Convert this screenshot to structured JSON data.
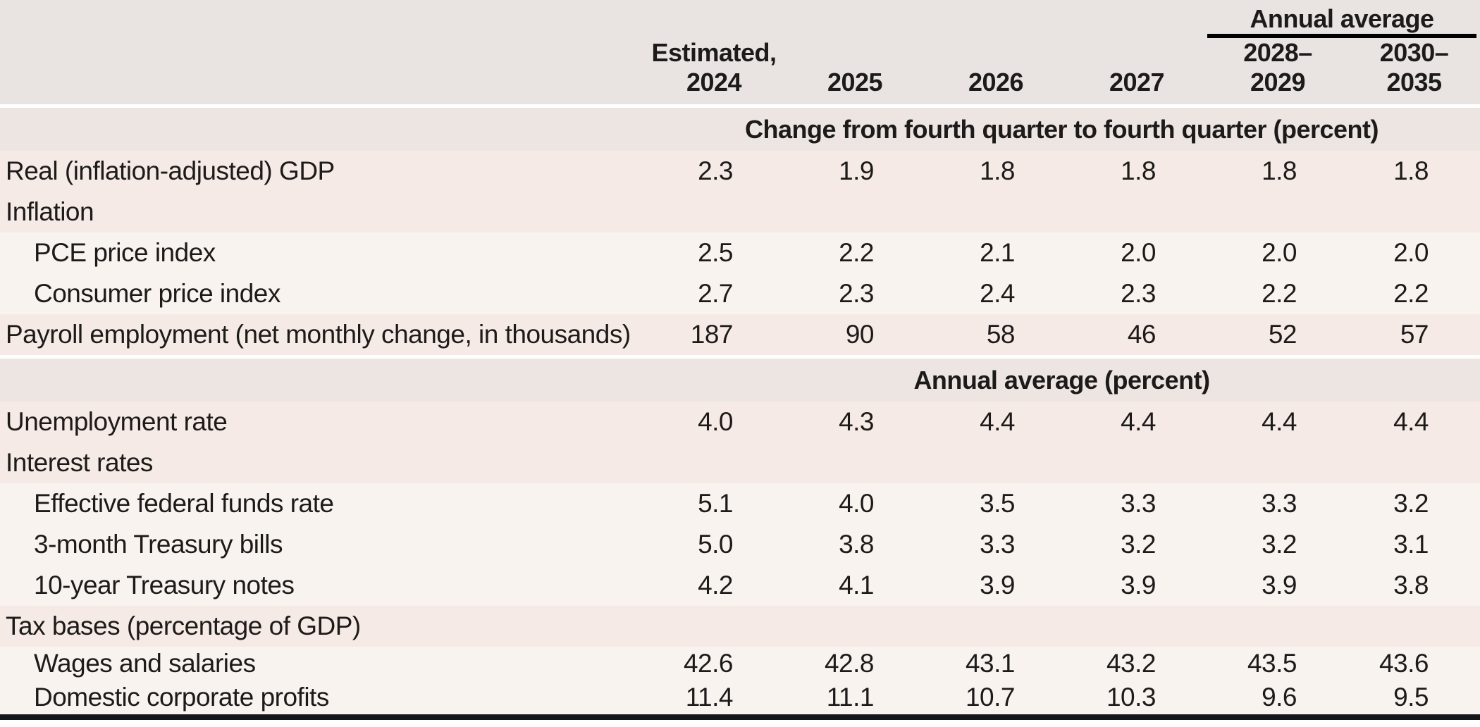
{
  "table": {
    "spanner_label": "Annual average",
    "columns": [
      {
        "line1": "Estimated,",
        "line2": "2024"
      },
      {
        "line1": "",
        "line2": "2025"
      },
      {
        "line1": "",
        "line2": "2026"
      },
      {
        "line1": "",
        "line2": "2027"
      },
      {
        "line1": "2028–",
        "line2": "2029"
      },
      {
        "line1": "2030–",
        "line2": "2035"
      }
    ],
    "sections": [
      {
        "header": "Change from fourth quarter to fourth quarter (percent)",
        "rows": [
          {
            "label": "Real (inflation-adjusted) GDP",
            "values": [
              "2.3",
              "1.9",
              "1.8",
              "1.8",
              "1.8",
              "1.8"
            ]
          },
          {
            "label": "Inflation",
            "values": [
              "",
              "",
              "",
              "",
              "",
              ""
            ]
          },
          {
            "label": "PCE price index",
            "values": [
              "2.5",
              "2.2",
              "2.1",
              "2.0",
              "2.0",
              "2.0"
            ]
          },
          {
            "label": "Consumer price index",
            "values": [
              "2.7",
              "2.3",
              "2.4",
              "2.3",
              "2.2",
              "2.2"
            ]
          },
          {
            "label": "Payroll employment (net monthly change, in thousands)",
            "values": [
              "187",
              "90",
              "58",
              "46",
              "52",
              "57"
            ]
          }
        ]
      },
      {
        "header": "Annual average (percent)",
        "rows": [
          {
            "label": "Unemployment rate",
            "values": [
              "4.0",
              "4.3",
              "4.4",
              "4.4",
              "4.4",
              "4.4"
            ]
          },
          {
            "label": "Interest rates",
            "values": [
              "",
              "",
              "",
              "",
              "",
              ""
            ]
          },
          {
            "label": "Effective federal funds rate",
            "values": [
              "5.1",
              "4.0",
              "3.5",
              "3.3",
              "3.3",
              "3.2"
            ]
          },
          {
            "label": "3-month Treasury bills",
            "values": [
              "5.0",
              "3.8",
              "3.3",
              "3.2",
              "3.2",
              "3.1"
            ]
          },
          {
            "label": "10-year Treasury notes",
            "values": [
              "4.2",
              "4.1",
              "3.9",
              "3.9",
              "3.9",
              "3.8"
            ]
          },
          {
            "label": "Tax bases (percentage of GDP)",
            "values": [
              "",
              "",
              "",
              "",
              "",
              ""
            ]
          },
          {
            "label": "Wages and salaries",
            "values": [
              "42.6",
              "42.8",
              "43.1",
              "43.2",
              "43.5",
              "43.6"
            ]
          },
          {
            "label": "Domestic corporate profits",
            "values": [
              "11.4",
              "11.1",
              "10.7",
              "10.3",
              "9.6",
              "9.5"
            ]
          }
        ]
      }
    ],
    "colors": {
      "header_band": "#e9e4e2",
      "section_band": "#ede5e2",
      "pink_row": "#f5eae5",
      "light_row": "#f9f3ef",
      "rule": "#14161a"
    }
  }
}
